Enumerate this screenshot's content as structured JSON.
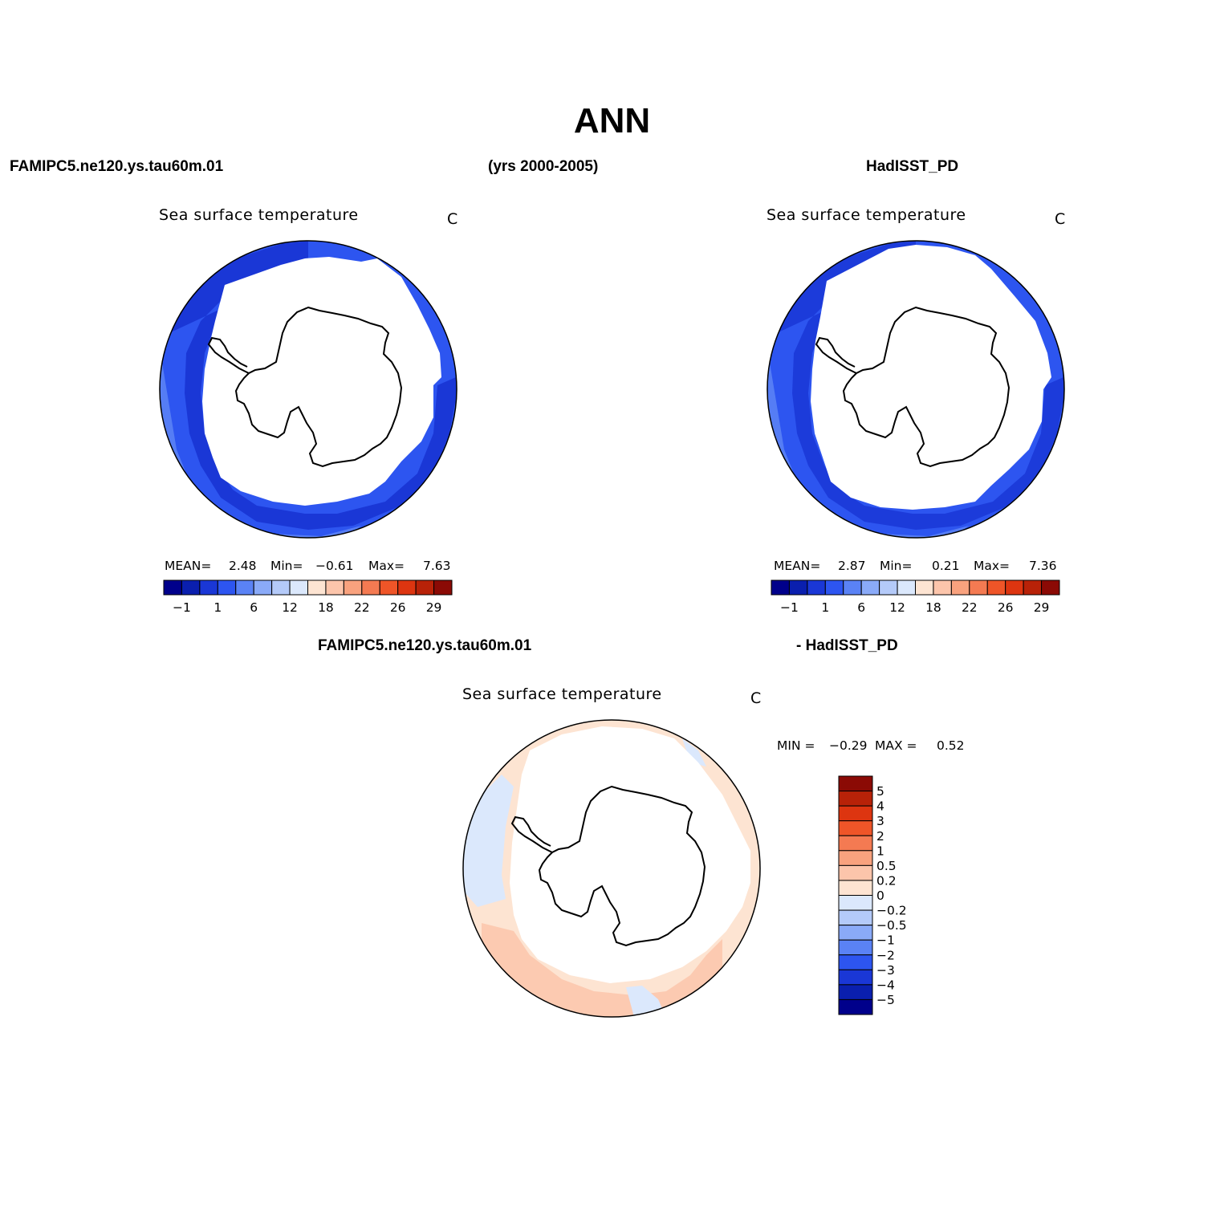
{
  "main_title": "ANN",
  "header": {
    "case_name": "FAMIPC5.ne120.ys.tau60m.01",
    "years": "(yrs 2000-2005)",
    "obs_name": "HadISST_PD"
  },
  "panels": [
    {
      "id": "model",
      "title": "Sea surface temperature",
      "units": "C",
      "stats": {
        "mean_label": "MEAN=",
        "mean": "2.48",
        "min_label": "Min=",
        "min": "−0.61",
        "max_label": "Max=",
        "max": "7.63"
      }
    },
    {
      "id": "obs",
      "title": "Sea surface temperature",
      "units": "C",
      "stats": {
        "mean_label": "MEAN=",
        "mean": "2.87",
        "min_label": "Min=",
        "min": "0.21",
        "max_label": "Max=",
        "max": "7.36"
      }
    },
    {
      "id": "diff",
      "title": "Sea surface temperature",
      "units": "C",
      "stats": {
        "min_label": "MIN =",
        "min": "−0.29",
        "max_label": "MAX =",
        "max": "0.52"
      }
    }
  ],
  "diff_header": {
    "left": "FAMIPC5.ne120.ys.tau60m.01",
    "right": "- HadISST_PD"
  },
  "abs_colorbar": {
    "colors": [
      "#00008b",
      "#0a1fae",
      "#1a37d6",
      "#2d55f0",
      "#5a82f5",
      "#8aaaf8",
      "#b4caf9",
      "#dbe8fc",
      "#fde4d2",
      "#fcc5ab",
      "#f9a27e",
      "#f47a52",
      "#ef5528",
      "#dd3510",
      "#b82208",
      "#8b0a05"
    ],
    "labels": [
      "−1",
      "1",
      "6",
      "12",
      "18",
      "22",
      "26",
      "29"
    ]
  },
  "diff_colorbar": {
    "colors_top_to_bottom": [
      "#8b0a05",
      "#b82208",
      "#dd3510",
      "#ef5528",
      "#f47a52",
      "#f9a27e",
      "#fcc5ab",
      "#fde4d2",
      "#dbe8fc",
      "#b4caf9",
      "#8aaaf8",
      "#5a82f5",
      "#2d55f0",
      "#1a37d6",
      "#0a1fae",
      "#00008b"
    ],
    "labels": [
      "5",
      "4",
      "3",
      "2",
      "1",
      "0.5",
      "0.2",
      "0",
      "−0.2",
      "−0.5",
      "−1",
      "−2",
      "−3",
      "−4",
      "−5"
    ]
  },
  "legend": {
    "colors": {
      "ocean_dark": "#1a37d6",
      "ocean_mid": "#2d55f0",
      "ocean_light": "#5a82f5",
      "diff_pos": "#fde4d2",
      "diff_pos2": "#fcc5ab",
      "diff_neg": "#dbe8fc",
      "diff_neg2": "#b4caf9"
    }
  }
}
